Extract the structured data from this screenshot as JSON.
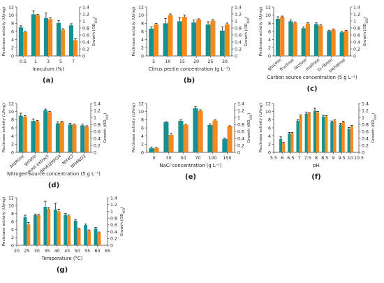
{
  "colors": {
    "pectinase": "#17918f",
    "growth": "#f28a1e",
    "error": "#1a1a1a"
  },
  "chart_data": [
    {
      "panel_label": "(a)",
      "type": "bar",
      "xlabel": "Inoculum (%)",
      "ylabel_left": "Pectinase activity (U/mg)",
      "ylabel_right": "Growth (OD600)",
      "ylim_left": [
        0,
        12
      ],
      "ylim_right": [
        0,
        1.4
      ],
      "yticks_left": [
        "0",
        "2",
        "4",
        "6",
        "8",
        "10",
        "12"
      ],
      "yticks_right": [
        "0",
        "0.2",
        "0.4",
        "0.6",
        "0.8",
        "1",
        "1.2",
        "1.4"
      ],
      "categories": [
        "0.5",
        "1",
        "3",
        "5",
        "7"
      ],
      "label_rotation": 0,
      "series": [
        {
          "values": [
            7.0,
            10.2,
            9.3,
            8.1,
            7.5
          ],
          "errors": [
            0.4,
            0.8,
            1.2,
            0.6,
            0.4
          ]
        },
        {
          "values": [
            0.68,
            1.17,
            1.05,
            0.75,
            0.45
          ],
          "errors": [
            0.02,
            0.02,
            0.04,
            0.03,
            0.04
          ]
        }
      ]
    },
    {
      "panel_label": "(b)",
      "type": "bar",
      "xlabel": "Citrus pectin concentration (g L⁻¹)",
      "ylabel_left": "Pectinase activity (U/mg)",
      "ylabel_right": "Growth (OD600)",
      "ylim_left": [
        0,
        12
      ],
      "ylim_right": [
        0,
        1.4
      ],
      "yticks_left": [
        "0",
        "2",
        "4",
        "6",
        "8",
        "10",
        "12"
      ],
      "yticks_right": [
        "0",
        "0.2",
        "0.4",
        "0.6",
        "0.8",
        "1",
        "1.2",
        "1.4"
      ],
      "categories": [
        "5",
        "10",
        "15",
        "20",
        "25",
        "30"
      ],
      "label_rotation": 0,
      "series": [
        {
          "values": [
            6.7,
            8.0,
            8.5,
            8.2,
            7.7,
            6.2
          ],
          "errors": [
            0.4,
            1.2,
            0.9,
            0.6,
            0.7,
            0.9
          ]
        },
        {
          "values": [
            0.9,
            1.17,
            1.12,
            1.04,
            1.01,
            0.9
          ],
          "errors": [
            0.03,
            0.03,
            0.05,
            0.02,
            0.03,
            0.04
          ]
        }
      ]
    },
    {
      "panel_label": "(c)",
      "type": "bar",
      "xlabel": "Carbon source concentration (5 g L⁻¹)",
      "ylabel_left": "Pectinase activity (U/mg)",
      "ylabel_right": "Growth (OD600)",
      "ylim_left": [
        0,
        12
      ],
      "ylim_right": [
        0,
        1.4
      ],
      "yticks_left": [
        "0",
        "2",
        "4",
        "6",
        "8",
        "10",
        "12"
      ],
      "yticks_right": [
        "0",
        "0.2",
        "0.4",
        "0.6",
        "0.8",
        "1",
        "1.2",
        "1.4"
      ],
      "categories": [
        "glucose",
        "fructose",
        "lactose",
        "maltose",
        "D-ribose",
        "trehalose"
      ],
      "label_rotation": -40,
      "series": [
        {
          "values": [
            9.1,
            8.5,
            6.8,
            7.8,
            6.1,
            5.8
          ],
          "errors": [
            0.5,
            0.3,
            0.3,
            0.3,
            0.2,
            0.2
          ]
        },
        {
          "values": [
            1.12,
            0.95,
            0.93,
            0.87,
            0.75,
            0.71
          ],
          "errors": [
            0.02,
            0.02,
            0.02,
            0.02,
            0.02,
            0.02
          ]
        }
      ]
    },
    {
      "panel_label": "(d)",
      "type": "bar",
      "xlabel": "Nitrogen source concentration (5 g L⁻¹)",
      "ylabel_left": "Pectinase activity (U/mg)",
      "ylabel_right": "Growth (OD600)",
      "ylim_left": [
        0,
        12
      ],
      "ylim_right": [
        0,
        1.4
      ],
      "yticks_left": [
        "0",
        "2",
        "4",
        "6",
        "8",
        "10",
        "12"
      ],
      "yticks_right": [
        "0",
        "0.2",
        "0.4",
        "0.6",
        "0.8",
        "1",
        "1.2",
        "1.4"
      ],
      "categories": [
        "peptone",
        "gelatin",
        "yeast extract",
        "(NH4)2HPO4",
        "NH4Cl",
        "NH4NO3"
      ],
      "label_rotation": -40,
      "series": [
        {
          "values": [
            9.0,
            7.7,
            10.3,
            7.1,
            6.8,
            6.6
          ],
          "errors": [
            0.6,
            0.5,
            0.3,
            0.4,
            0.3,
            0.3
          ]
        },
        {
          "values": [
            1.02,
            0.89,
            1.15,
            0.87,
            0.79,
            0.74
          ],
          "errors": [
            0.03,
            0.02,
            0.02,
            0.02,
            0.02,
            0.02
          ]
        }
      ]
    },
    {
      "panel_label": "(e)",
      "type": "bar",
      "xlabel": "NaCl concentration (g L⁻¹)",
      "ylabel_left": "Pectinase activity (U/mg)",
      "ylabel_right": "Growth (OD600)",
      "ylim_left": [
        0,
        12
      ],
      "ylim_right": [
        0,
        1.4
      ],
      "yticks_left": [
        "0",
        "2",
        "4",
        "6",
        "8",
        "10",
        "12"
      ],
      "yticks_right": [
        "0",
        "0.2",
        "0.4",
        "0.6",
        "0.8",
        "1",
        "1.2",
        "1.4"
      ],
      "categories": [
        "0",
        "30",
        "50",
        "70",
        "100",
        "150"
      ],
      "label_rotation": 0,
      "series": [
        {
          "values": [
            1.0,
            7.4,
            7.7,
            10.8,
            6.7,
            3.3
          ],
          "errors": [
            0.3,
            0.1,
            0.3,
            0.4,
            0.3,
            0.2
          ]
        },
        {
          "values": [
            0.12,
            0.5,
            0.79,
            1.19,
            0.91,
            0.75
          ],
          "errors": [
            0.01,
            0.04,
            0.02,
            0.03,
            0.02,
            0.01
          ]
        }
      ]
    },
    {
      "panel_label": "(f)",
      "type": "bar",
      "xlabel": "pH",
      "ylabel_left": "Pectinase activity (U/mg)",
      "ylabel_right": "Growth (OD600)",
      "ylim_left": [
        0,
        12
      ],
      "ylim_right": [
        0,
        1.4
      ],
      "yticks_left": [
        "0",
        "2",
        "4",
        "6",
        "8",
        "10",
        "12"
      ],
      "yticks_right": [
        "0",
        "0.2",
        "0.4",
        "0.6",
        "0.8",
        "1",
        "1.2",
        "1.4"
      ],
      "categories": [
        "5.5",
        "6",
        "6.5",
        "7",
        "7.5",
        "8",
        "8.5",
        "9",
        "9.5",
        "10",
        "10.5"
      ],
      "x_numeric": true,
      "x_values": [
        6,
        6.5,
        7,
        7.5,
        8,
        8.5,
        9,
        9.5,
        10
      ],
      "label_rotation": 0,
      "series": [
        {
          "values": [
            3.3,
            4.6,
            7.7,
            9.5,
            10.2,
            8.8,
            7.5,
            6.8,
            5.8
          ],
          "errors": [
            0.5,
            0.3,
            0.3,
            0.4,
            0.6,
            0.3,
            0.2,
            0.3,
            0.3
          ]
        },
        {
          "values": [
            0.27,
            0.55,
            1.05,
            1.12,
            1.14,
            1.03,
            0.91,
            0.87,
            0.75
          ],
          "errors": [
            0.02,
            0.02,
            0.02,
            0.02,
            0.03,
            0.02,
            0.02,
            0.02,
            0.02
          ]
        }
      ]
    },
    {
      "panel_label": "(g)",
      "type": "bar",
      "xlabel": "Temperature (°C)",
      "ylabel_left": "Pectinase activity (U/mg)",
      "ylabel_right": "Growth (OD600)",
      "ylim_left": [
        0,
        12
      ],
      "ylim_right": [
        0,
        1.4
      ],
      "yticks_left": [
        "0",
        "2",
        "4",
        "6",
        "8",
        "10",
        "12"
      ],
      "yticks_right": [
        "0",
        "0.2",
        "0.4",
        "0.6",
        "0.8",
        "1",
        "1.2",
        "1.4"
      ],
      "categories": [
        "20",
        "25",
        "30",
        "35",
        "40",
        "45",
        "50",
        "55",
        "60",
        "65"
      ],
      "x_numeric": true,
      "x_values": [
        25,
        30,
        35,
        40,
        45,
        50,
        55,
        60
      ],
      "label_rotation": 0,
      "series": [
        {
          "values": [
            7.1,
            7.6,
            9.7,
            9.0,
            7.7,
            6.2,
            5.1,
            4.2
          ],
          "errors": [
            0.5,
            0.3,
            1.4,
            1.6,
            0.3,
            0.3,
            0.3,
            0.3
          ]
        },
        {
          "values": [
            0.62,
            0.89,
            1.07,
            1.0,
            0.87,
            0.48,
            0.43,
            0.37
          ],
          "errors": [
            0.05,
            0.02,
            0.04,
            0.06,
            0.02,
            0.02,
            0.02,
            0.02
          ]
        }
      ]
    }
  ]
}
